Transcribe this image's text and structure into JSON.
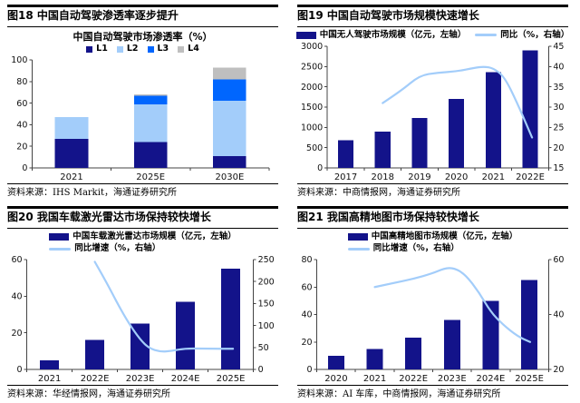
{
  "page_bg": "#ffffff",
  "colors": {
    "bar_navy": "#13138A",
    "light_blue": "#A3CDFA",
    "bright_blue": "#0066FE",
    "gray": "#BFBFBF",
    "axis": "#444444",
    "text": "#111111"
  },
  "chart_data": [
    {
      "type": "stacked-bar",
      "figure_label": "图18 中国自动驾驶渗透率逐步提升",
      "title": "中国自动驾驶市场渗透率（%）",
      "source": "资料来源：IHS Markit，海通证券研究所",
      "categories": [
        "2021",
        "2025E",
        "2030E"
      ],
      "series": [
        {
          "name": "L1",
          "color": "#13138A",
          "values": [
            27,
            24,
            11
          ]
        },
        {
          "name": "L2",
          "color": "#A3CDFA",
          "values": [
            20,
            35,
            51
          ]
        },
        {
          "name": "L3",
          "color": "#0066FE",
          "values": [
            0,
            8,
            20
          ]
        },
        {
          "name": "L4",
          "color": "#BFBFBF",
          "values": [
            0,
            1,
            11
          ]
        }
      ],
      "left_axis": {
        "min": 0,
        "max": 100,
        "ticks": [
          0,
          20,
          40,
          60,
          80,
          100
        ]
      }
    },
    {
      "type": "bar-line",
      "figure_label": "图19 中国自动驾驶市场规模快速增长",
      "source": "资料来源：中商情报网，海通证券研究所",
      "legend_layout": "row",
      "legend": [
        {
          "swatch": "bar",
          "color": "#13138A",
          "label": "中国无人驾驶市场规模（亿元，左轴）"
        },
        {
          "swatch": "line",
          "color": "#A3CDFA",
          "label": "同比（%，右轴）"
        }
      ],
      "categories": [
        "2017",
        "2018",
        "2019",
        "2020",
        "2021",
        "2022E"
      ],
      "bars": {
        "color": "#13138A",
        "values": [
          680,
          890,
          1230,
          1700,
          2360,
          2900
        ]
      },
      "line": {
        "color": "#A3CDFA",
        "axis": "right",
        "values": [
          null,
          31,
          37.8,
          38.8,
          39.5,
          22.5
        ],
        "samples": [
          [
            1,
            31
          ],
          [
            1.5,
            34
          ],
          [
            2,
            37.8
          ],
          [
            2.5,
            38.5
          ],
          [
            3,
            38.8
          ],
          [
            3.5,
            39.7
          ],
          [
            3.75,
            40
          ],
          [
            4,
            39.6
          ],
          [
            4.3,
            37.5
          ],
          [
            4.65,
            31
          ],
          [
            5.05,
            22.5
          ]
        ]
      },
      "left_axis": {
        "min": 0,
        "max": 3000,
        "ticks": [
          0,
          500,
          1000,
          1500,
          2000,
          2500,
          3000
        ]
      },
      "right_axis": {
        "min": 15,
        "max": 45,
        "ticks": [
          15,
          20,
          25,
          30,
          35,
          40,
          45
        ]
      }
    },
    {
      "type": "bar-line",
      "figure_label": "图20 我国车载激光雷达市场保持较快增长",
      "source": "资料来源：华经情报网，海通证券研究所",
      "legend_layout": "stack",
      "legend": [
        {
          "swatch": "bar",
          "color": "#13138A",
          "label": "中国车载激光雷达市场规模（亿元，左轴）"
        },
        {
          "swatch": "line",
          "color": "#A3CDFA",
          "label": "同比增速（%，右轴）"
        }
      ],
      "categories": [
        "2021",
        "2022E",
        "2023E",
        "2024E",
        "2025E"
      ],
      "bars": {
        "color": "#13138A",
        "values": [
          5,
          16,
          25,
          37,
          55
        ]
      },
      "line": {
        "color": "#A3CDFA",
        "axis": "right",
        "values": [
          null,
          245,
          56,
          48,
          47
        ],
        "samples": [
          [
            1,
            245
          ],
          [
            1.25,
            200
          ],
          [
            1.5,
            150
          ],
          [
            1.75,
            105
          ],
          [
            2,
            68
          ],
          [
            2.2,
            48
          ],
          [
            2.45,
            40
          ],
          [
            2.7,
            42
          ],
          [
            3,
            48
          ],
          [
            3.5,
            47
          ],
          [
            4.05,
            47
          ]
        ]
      },
      "left_axis": {
        "min": 0,
        "max": 60,
        "ticks": [
          0,
          20,
          40,
          60
        ]
      },
      "right_axis": {
        "min": 0,
        "max": 250,
        "ticks": [
          0,
          50,
          100,
          150,
          200,
          250
        ]
      }
    },
    {
      "type": "bar-line",
      "figure_label": "图21 我国高精地图市场保持较快增长",
      "source": "资料来源：AI 车库，中商情报网，海通证券研究所",
      "legend_layout": "stack",
      "legend": [
        {
          "swatch": "bar",
          "color": "#13138A",
          "label": "中国高精地图市场规模（亿元，左轴）"
        },
        {
          "swatch": "line",
          "color": "#A3CDFA",
          "label": "同比增速（%，右轴）"
        }
      ],
      "categories": [
        "2020",
        "2021",
        "2022E",
        "2023E",
        "2024E",
        "2025E"
      ],
      "bars": {
        "color": "#13138A",
        "values": [
          10,
          15,
          23,
          36,
          50,
          65
        ]
      },
      "line": {
        "color": "#A3CDFA",
        "axis": "right",
        "values": [
          null,
          50,
          53,
          57,
          39,
          30
        ],
        "samples": [
          [
            1,
            50
          ],
          [
            1.5,
            51.5
          ],
          [
            2,
            53
          ],
          [
            2.5,
            55
          ],
          [
            2.8,
            56.8
          ],
          [
            3.05,
            57
          ],
          [
            3.35,
            54.5
          ],
          [
            3.7,
            48
          ],
          [
            4,
            41
          ],
          [
            4.3,
            36.5
          ],
          [
            4.7,
            32
          ],
          [
            5.02,
            30
          ]
        ]
      },
      "left_axis": {
        "min": 0,
        "max": 80,
        "ticks": [
          0,
          20,
          40,
          60,
          80
        ]
      },
      "right_axis": {
        "min": 20,
        "max": 60,
        "ticks": [
          20,
          40,
          60
        ]
      }
    }
  ]
}
